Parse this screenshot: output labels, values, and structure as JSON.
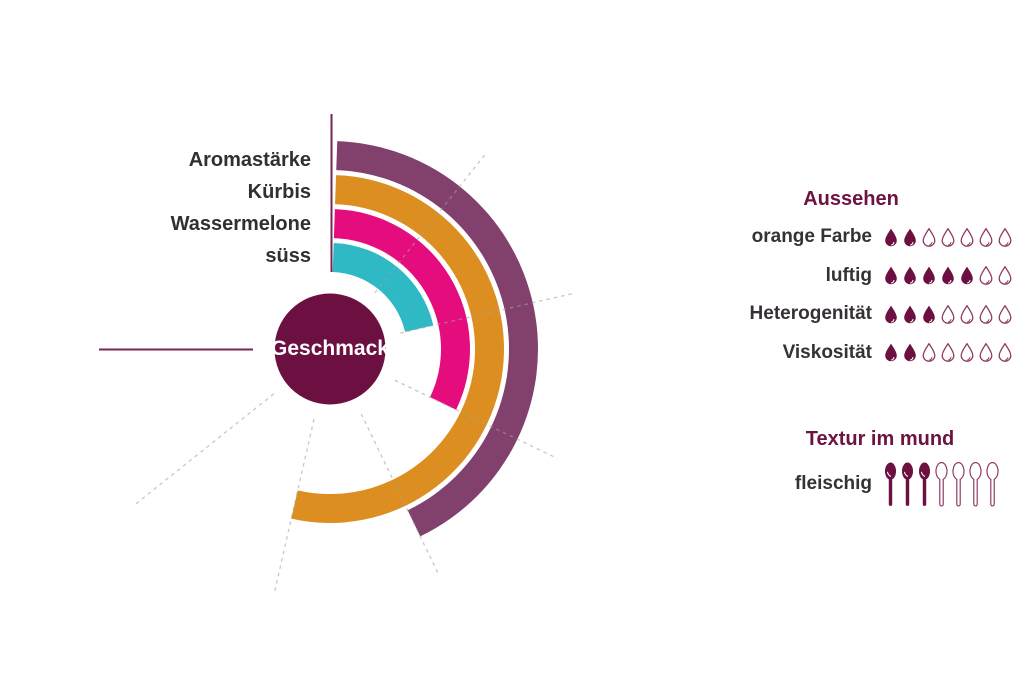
{
  "chart_data": [
    {
      "type": "radial_bar",
      "title": "Geschmack",
      "categories": [
        "Aromastärke",
        "Kürbis",
        "Wassermelone",
        "süss"
      ],
      "values": [
        4,
        5,
        3,
        2
      ],
      "value_max": 7,
      "full_angle_deg": 270,
      "start_angle_deg": 0,
      "direction": "clockwise from top",
      "colors": [
        "#82406d",
        "#dd8e21",
        "#e50d7d",
        "#2fb9c4"
      ],
      "center_label": "Geschmack",
      "center_color": "#6b1040",
      "grid": "dashed radial lines at each unit (1-6)",
      "legend_position": "labels left of 12 o'clock axis"
    },
    {
      "type": "icon_rating",
      "title": "Aussehen",
      "icon": "drop",
      "max": 7,
      "categories": [
        "orange Farbe",
        "luftig",
        "Heterogenität",
        "Viskosität"
      ],
      "values": [
        2,
        5,
        3,
        2
      ]
    },
    {
      "type": "icon_rating",
      "title": "Textur im mund",
      "icon": "spoon",
      "max": 7,
      "categories": [
        "fleischig"
      ],
      "values": [
        3
      ]
    }
  ],
  "colors": {
    "icon_filled": "#6b1040",
    "icon_outline": "#8d3a62",
    "heading_text": "#6d1340",
    "label_text": "#332e33",
    "leader_line": "#772750",
    "grid_line": "#a3a3a3",
    "background": "#ffffff"
  }
}
